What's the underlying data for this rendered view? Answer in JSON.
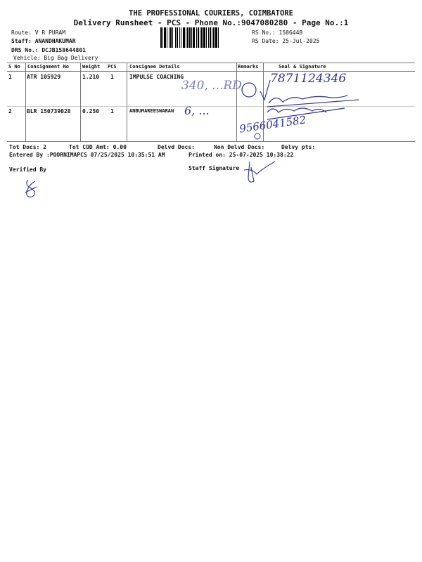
{
  "header": {
    "company": "THE PROFESSIONAL COURIERS, COIMBATORE",
    "subtitle": "Delivery Runsheet - PCS - Phone No.:9047080280 - Page No.:1",
    "route": "Route: V R PURAM",
    "staff": "Staff: ANANDHAKUMAR",
    "drs_no": "DRS No.: DCJB158644801",
    "vehicle": "Vehicle: Big Bag Delivery",
    "rs_no": "RS No.: 1586448",
    "rs_date": "RS Date: 25-Jul-2025"
  },
  "table": {
    "columns": [
      "S No",
      "Consignment No",
      "Weight",
      "PCS",
      "Consignee Details",
      "Remarks",
      "Seal & Signature"
    ],
    "rows": [
      {
        "sno": "1",
        "consignment": "ATR 105929",
        "weight": "1.210",
        "pcs": "1",
        "consignee": "IMPULSE COACHING",
        "handwritten_address": "340, ...RD",
        "handwritten_phone": "7871124346"
      },
      {
        "sno": "2",
        "consignment": "BLR 150739028",
        "weight": "0.250",
        "pcs": "1",
        "consignee": "ANBUMAREESWARAN",
        "handwritten_address": "6, ...",
        "handwritten_phone": "9566041582"
      }
    ]
  },
  "footer": {
    "tot_docs": "Tot Docs:   2",
    "tot_cod": "Tot COD Amt:    0.00",
    "delvd_docs": "Delvd Docs:",
    "non_delvd_docs": "Non Delvd Docs:",
    "delvy_pts": "Delvy pts:",
    "entered_by": "Entered By :POORNIMAPCS 07/25/2025 10:35:51 AM",
    "printed_on": "Printed on: 25-07-2025 10:38:22",
    "verified_by": "Verified By",
    "staff_signature": "Staff Signature"
  },
  "colors": {
    "ink": "#2b2fa0"
  }
}
